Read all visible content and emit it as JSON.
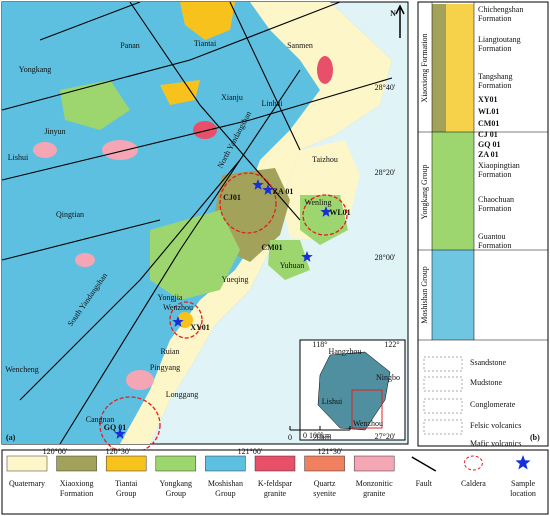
{
  "map": {
    "panel_label": "(a)",
    "north": "N",
    "places": [
      "Tiantai",
      "Sanmen",
      "Panan",
      "Yongkang",
      "Xianju",
      "Linhai",
      "Jinyun",
      "Lishui",
      "Taizhou",
      "Qingtian",
      "Wenling",
      "Yuhuan",
      "Yueqing",
      "Yongjia",
      "Wenzhou",
      "Ruian",
      "Pingyang",
      "Longgang",
      "Cangnan",
      "Wencheng"
    ],
    "samples": [
      "CJ01",
      "ZA 01",
      "WL01",
      "CM01",
      "XY01",
      "GQ 01"
    ],
    "faults": [
      "North Yandangshan",
      "South Yandangshan"
    ],
    "lat_labels": [
      "28°40'",
      "28°20'",
      "28°00'",
      "27°20'"
    ],
    "lon_labels": [
      "120°00'",
      "120°30'",
      "121°00'",
      "121°30'"
    ],
    "scale": [
      "0",
      "20km"
    ],
    "inset": {
      "labels": [
        "118°",
        "122°",
        "Hangzhou",
        "Ningbo",
        "Lishui",
        "Wenzhou"
      ],
      "scale": "0 100km"
    }
  },
  "column": {
    "panel_label": "(b)",
    "formations": [
      {
        "lines": [
          "Chichengshan",
          "Formation"
        ]
      },
      {
        "lines": [
          "Liangtoutang",
          "Formation"
        ]
      },
      {
        "lines": [
          "Tangshang",
          "Formation"
        ]
      },
      {
        "lines": [
          "Xiaopingtian",
          "Formation"
        ]
      },
      {
        "lines": [
          "Chaochuan",
          "Formation"
        ]
      },
      {
        "lines": [
          "Guantou",
          "Formation"
        ]
      }
    ],
    "samples": [
      "XY01",
      "WL01",
      "CM01",
      "CJ 01",
      "GQ 01",
      "ZA 01"
    ],
    "units": [
      "Xiaoxiong Formation",
      "Yongkang Group",
      "Moshishan Group"
    ],
    "lithology": [
      "Ssandstone",
      "Mudstone",
      "Conglomerate",
      "Felsic volcanics",
      "Mafic volcanics"
    ]
  },
  "legend": [
    {
      "lines": [
        "Quaternary"
      ]
    },
    {
      "lines": [
        "Xiaoxiong",
        "Formation"
      ]
    },
    {
      "lines": [
        "Tiantai",
        "Group"
      ]
    },
    {
      "lines": [
        "Yongkang",
        "Group"
      ]
    },
    {
      "lines": [
        "Moshishan",
        "Group"
      ]
    },
    {
      "lines": [
        "K-feldspar",
        "granite"
      ]
    },
    {
      "lines": [
        "Quartz",
        "syenite"
      ]
    },
    {
      "lines": [
        "Monzonitic",
        "granite"
      ]
    },
    {
      "lines": [
        "Fault"
      ]
    },
    {
      "lines": [
        "Caldera"
      ]
    },
    {
      "lines": [
        "Sample",
        "location"
      ]
    }
  ]
}
